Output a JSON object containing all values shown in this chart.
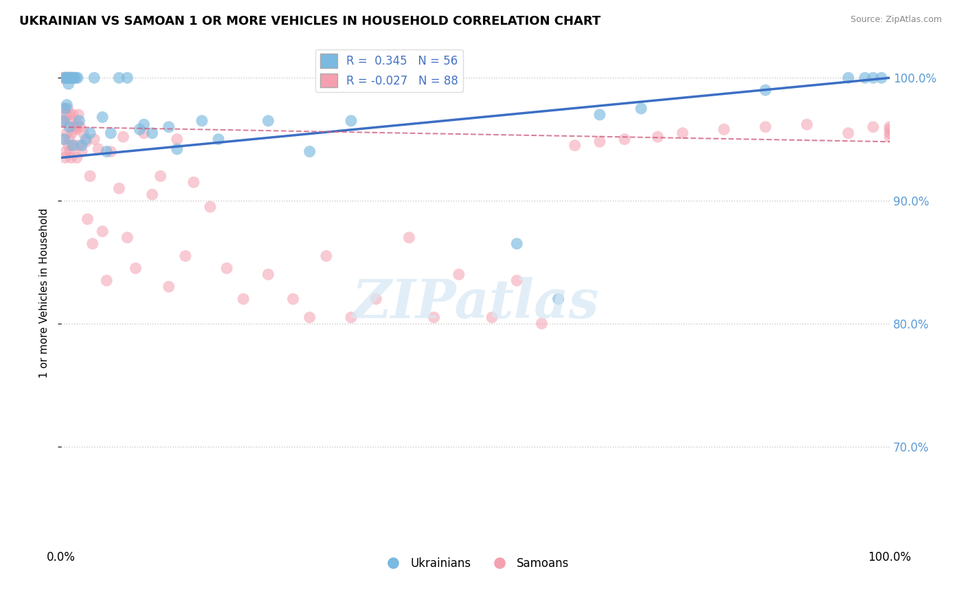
{
  "title": "UKRAINIAN VS SAMOAN 1 OR MORE VEHICLES IN HOUSEHOLD CORRELATION CHART",
  "source": "Source: ZipAtlas.com",
  "ylabel": "1 or more Vehicles in Household",
  "xlim": [
    0.0,
    100.0
  ],
  "ylim": [
    62.0,
    103.0
  ],
  "ytick_positions": [
    70.0,
    80.0,
    90.0,
    100.0
  ],
  "ytick_labels": [
    "70.0%",
    "80.0%",
    "90.0%",
    "100.0%"
  ],
  "background_color": "#ffffff",
  "blue_color": "#7ab9e0",
  "pink_color": "#f4a0b0",
  "blue_line_color": "#3c6fc4",
  "pink_line_color": "#d06080",
  "blue_line_x": [
    0.0,
    100.0
  ],
  "blue_line_y": [
    93.5,
    100.0
  ],
  "pink_line_x": [
    0.0,
    100.0
  ],
  "pink_line_y": [
    96.0,
    94.8
  ],
  "ukrainians_x": [
    0.3,
    0.4,
    0.5,
    0.5,
    0.6,
    0.7,
    0.7,
    0.8,
    0.9,
    1.0,
    1.0,
    1.1,
    1.2,
    1.3,
    1.4,
    1.5,
    1.6,
    1.8,
    2.0,
    2.2,
    2.5,
    3.0,
    3.5,
    4.0,
    5.0,
    5.5,
    6.0,
    7.0,
    8.0,
    9.5,
    10.0,
    11.0,
    13.0,
    14.0,
    17.0,
    19.0,
    25.0,
    30.0,
    35.0,
    55.0,
    60.0,
    65.0,
    70.0,
    85.0,
    95.0,
    97.0,
    98.0,
    99.0
  ],
  "ukrainians_y": [
    96.5,
    95.0,
    97.5,
    100.0,
    100.0,
    100.0,
    97.8,
    100.0,
    99.5,
    100.0,
    96.0,
    100.0,
    100.0,
    100.0,
    94.5,
    100.0,
    100.0,
    100.0,
    100.0,
    96.5,
    94.5,
    95.0,
    95.5,
    100.0,
    96.8,
    94.0,
    95.5,
    100.0,
    100.0,
    95.8,
    96.2,
    95.5,
    96.0,
    94.2,
    96.5,
    95.0,
    96.5,
    94.0,
    96.5,
    86.5,
    82.0,
    97.0,
    97.5,
    99.0,
    100.0,
    100.0,
    100.0,
    100.0
  ],
  "samoans_x": [
    0.1,
    0.2,
    0.2,
    0.3,
    0.3,
    0.4,
    0.4,
    0.5,
    0.5,
    0.6,
    0.6,
    0.6,
    0.7,
    0.7,
    0.8,
    0.8,
    0.9,
    0.9,
    1.0,
    1.0,
    1.0,
    1.1,
    1.1,
    1.2,
    1.2,
    1.3,
    1.4,
    1.5,
    1.5,
    1.6,
    1.7,
    1.8,
    1.9,
    2.0,
    2.1,
    2.2,
    2.3,
    2.5,
    2.7,
    3.0,
    3.2,
    3.5,
    3.8,
    4.0,
    4.5,
    5.0,
    5.5,
    6.0,
    7.0,
    7.5,
    8.0,
    9.0,
    10.0,
    11.0,
    12.0,
    13.0,
    14.0,
    15.0,
    16.0,
    18.0,
    20.0,
    22.0,
    25.0,
    28.0,
    30.0,
    32.0,
    35.0,
    38.0,
    42.0,
    45.0,
    48.0,
    52.0,
    55.0,
    58.0,
    62.0,
    65.0,
    68.0,
    72.0,
    75.0,
    80.0,
    85.0,
    90.0,
    95.0,
    98.0,
    100.0,
    100.0,
    100.0,
    100.0
  ],
  "samoans_y": [
    96.5,
    97.5,
    100.0,
    95.0,
    100.0,
    96.5,
    100.0,
    93.5,
    100.0,
    97.0,
    94.0,
    100.0,
    95.5,
    100.0,
    97.5,
    100.0,
    94.5,
    100.0,
    95.0,
    97.0,
    100.0,
    94.0,
    100.0,
    96.5,
    93.5,
    95.5,
    97.0,
    96.0,
    100.0,
    94.5,
    96.0,
    95.8,
    93.5,
    96.2,
    97.0,
    94.5,
    96.0,
    94.0,
    95.5,
    94.8,
    88.5,
    92.0,
    86.5,
    95.0,
    94.2,
    87.5,
    83.5,
    94.0,
    91.0,
    95.2,
    87.0,
    84.5,
    95.5,
    90.5,
    92.0,
    83.0,
    95.0,
    85.5,
    91.5,
    89.5,
    84.5,
    82.0,
    84.0,
    82.0,
    80.5,
    85.5,
    80.5,
    82.0,
    87.0,
    80.5,
    84.0,
    80.5,
    83.5,
    80.0,
    94.5,
    94.8,
    95.0,
    95.2,
    95.5,
    95.8,
    96.0,
    96.2,
    95.5,
    96.0,
    95.2,
    95.5,
    96.0,
    95.8
  ]
}
